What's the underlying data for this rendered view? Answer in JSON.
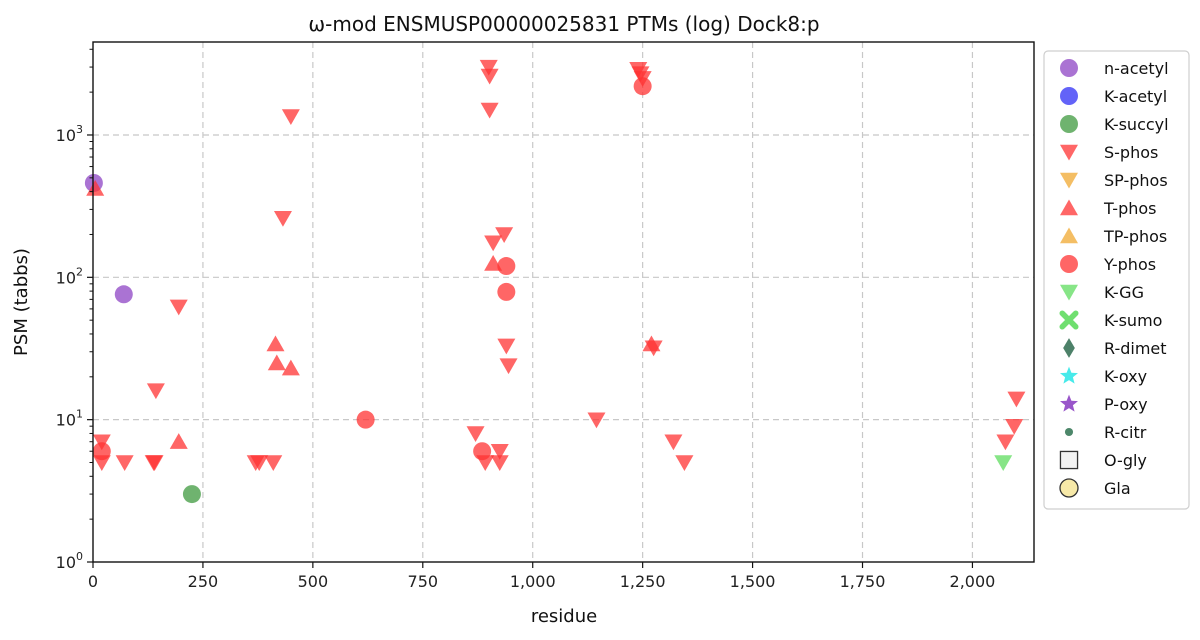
{
  "chart_data": {
    "type": "scatter",
    "title": "ω-mod ENSMUSP00000025831 PTMs (log) Dock8:p",
    "xlabel": "residue",
    "ylabel": "PSM (tabbs)",
    "xlim": [
      0,
      2140
    ],
    "ylim": [
      1,
      4500
    ],
    "yscale": "log",
    "grid": true,
    "legend_position": "right-outside",
    "x_ticks": [
      {
        "value": 0,
        "label": "0"
      },
      {
        "value": 250,
        "label": "250"
      },
      {
        "value": 500,
        "label": "500"
      },
      {
        "value": 750,
        "label": "750"
      },
      {
        "value": 1000,
        "label": "1,000"
      },
      {
        "value": 1250,
        "label": "1,250"
      },
      {
        "value": 1500,
        "label": "1,500"
      },
      {
        "value": 1750,
        "label": "1,750"
      },
      {
        "value": 2000,
        "label": "2,000"
      }
    ],
    "y_ticks": [
      {
        "value": 1,
        "base": "10",
        "exp": "0"
      },
      {
        "value": 10,
        "base": "10",
        "exp": "1"
      },
      {
        "value": 100,
        "base": "10",
        "exp": "2"
      },
      {
        "value": 1000,
        "base": "10",
        "exp": "3"
      }
    ],
    "series": [
      {
        "name": "n-acetyl",
        "marker": "circle",
        "color": "#8e44c4",
        "points": [
          [
            2,
            460
          ],
          [
            70,
            76
          ]
        ]
      },
      {
        "name": "K-acetyl",
        "marker": "circle",
        "color": "#2f2ff5",
        "points": []
      },
      {
        "name": "K-succyl",
        "marker": "circle",
        "color": "#3f9a3f",
        "points": [
          [
            225,
            3
          ]
        ]
      },
      {
        "name": "S-phos",
        "marker": "triangle-down",
        "color": "#ff3333",
        "points": [
          [
            20,
            7
          ],
          [
            20,
            5
          ],
          [
            72,
            5
          ],
          [
            138,
            5
          ],
          [
            140,
            5
          ],
          [
            143,
            16
          ],
          [
            195,
            62
          ],
          [
            370,
            5
          ],
          [
            378,
            5
          ],
          [
            410,
            5
          ],
          [
            432,
            260
          ],
          [
            450,
            1350
          ],
          [
            870,
            8
          ],
          [
            892,
            5
          ],
          [
            900,
            3000
          ],
          [
            902,
            2600
          ],
          [
            902,
            1500
          ],
          [
            910,
            175
          ],
          [
            925,
            6
          ],
          [
            925,
            5
          ],
          [
            935,
            200
          ],
          [
            940,
            33
          ],
          [
            945,
            24
          ],
          [
            1145,
            10
          ],
          [
            1240,
            2900
          ],
          [
            1245,
            2700
          ],
          [
            1250,
            2500
          ],
          [
            1275,
            32
          ],
          [
            1320,
            7
          ],
          [
            1345,
            5
          ],
          [
            2075,
            7
          ],
          [
            2095,
            9
          ],
          [
            2100,
            14
          ]
        ]
      },
      {
        "name": "SP-phos",
        "marker": "triangle-down",
        "color": "#f0a830",
        "points": []
      },
      {
        "name": "T-phos",
        "marker": "triangle-up",
        "color": "#ff3333",
        "points": [
          [
            5,
            420
          ],
          [
            195,
            7
          ],
          [
            415,
            34
          ],
          [
            418,
            25
          ],
          [
            450,
            23
          ],
          [
            910,
            125
          ],
          [
            1270,
            34
          ]
        ]
      },
      {
        "name": "TP-phos",
        "marker": "triangle-up",
        "color": "#f0a830",
        "points": []
      },
      {
        "name": "Y-phos",
        "marker": "circle",
        "color": "#ff3333",
        "points": [
          [
            20,
            6
          ],
          [
            620,
            10
          ],
          [
            885,
            6
          ],
          [
            940,
            120
          ],
          [
            940,
            79
          ],
          [
            1250,
            2200
          ]
        ]
      },
      {
        "name": "K-GG",
        "marker": "triangle-down",
        "color": "#5fdc5f",
        "points": [
          [
            2070,
            5
          ]
        ]
      },
      {
        "name": "K-sumo",
        "marker": "x",
        "color": "#5fdc5f",
        "points": []
      },
      {
        "name": "R-dimet",
        "marker": "diamond",
        "color": "#2e6b4f",
        "points": []
      },
      {
        "name": "K-oxy",
        "marker": "star",
        "color": "#33e8e8",
        "points": []
      },
      {
        "name": "P-oxy",
        "marker": "star",
        "color": "#8e44c4",
        "points": []
      },
      {
        "name": "R-citr",
        "marker": "small-circle",
        "color": "#3a7a5a",
        "points": []
      },
      {
        "name": "O-gly",
        "marker": "square-open",
        "color": "#f2f2f2",
        "points": []
      },
      {
        "name": "Gla",
        "marker": "circle-open",
        "color": "#f7e9a8",
        "points": []
      }
    ]
  }
}
